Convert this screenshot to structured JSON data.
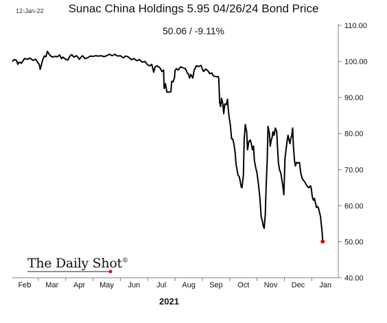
{
  "header": {
    "date": "12-Jan-22",
    "summary": "50.06  /  -9.11%"
  },
  "brand": {
    "name": "The Daily Shot",
    "mark": "®"
  },
  "colors": {
    "line": "#000000",
    "marker": "#e00000"
  },
  "chart_data": {
    "type": "line",
    "title": "Sunac China Holdings 5.95 04/26/24 Bond Price",
    "xlabel": "2021",
    "ylim": [
      40,
      110
    ],
    "yticks": [
      "40.00",
      "50.00",
      "60.00",
      "70.00",
      "80.00",
      "90.00",
      "100.00",
      "110.00"
    ],
    "month_ticks": [
      {
        "label": "Feb",
        "x": 1.5
      },
      {
        "label": "Mar",
        "x": 2.5
      },
      {
        "label": "Apr",
        "x": 3.5
      },
      {
        "label": "May",
        "x": 4.5
      },
      {
        "label": "Jun",
        "x": 5.5
      },
      {
        "label": "Jul",
        "x": 6.5
      },
      {
        "label": "Aug",
        "x": 7.5
      },
      {
        "label": "Sep",
        "x": 8.5
      },
      {
        "label": "Oct",
        "x": 9.5
      },
      {
        "label": "Nov",
        "x": 10.5
      },
      {
        "label": "Dec",
        "x": 11.5
      },
      {
        "label": "Jan",
        "x": 12.5
      }
    ],
    "xlim": [
      1.05,
      12.97
    ],
    "series": [
      {
        "values": [
          [
            1.05,
            100
          ],
          [
            1.12,
            100.5
          ],
          [
            1.2,
            100.3
          ],
          [
            1.25,
            99.2
          ],
          [
            1.3,
            99.8
          ],
          [
            1.38,
            99.5
          ],
          [
            1.45,
            100.3
          ],
          [
            1.5,
            100.8
          ],
          [
            1.6,
            100.6
          ],
          [
            1.7,
            100.9
          ],
          [
            1.8,
            100.3
          ],
          [
            1.9,
            100.6
          ],
          [
            1.97,
            99.8
          ],
          [
            2.03,
            99.2
          ],
          [
            2.07,
            97.8
          ],
          [
            2.1,
            98.6
          ],
          [
            2.15,
            100.2
          ],
          [
            2.22,
            101.5
          ],
          [
            2.28,
            101.3
          ],
          [
            2.33,
            102.8
          ],
          [
            2.38,
            102.2
          ],
          [
            2.42,
            101.8
          ],
          [
            2.5,
            101.2
          ],
          [
            2.6,
            101.4
          ],
          [
            2.7,
            101.3
          ],
          [
            2.78,
            101.8
          ],
          [
            2.85,
            100.8
          ],
          [
            2.9,
            101.2
          ],
          [
            3.0,
            100.6
          ],
          [
            3.08,
            100.4
          ],
          [
            3.15,
            101.4
          ],
          [
            3.22,
            101.9
          ],
          [
            3.3,
            101.2
          ],
          [
            3.4,
            101.6
          ],
          [
            3.5,
            100.6
          ],
          [
            3.55,
            101.1
          ],
          [
            3.62,
            101.6
          ],
          [
            3.7,
            100.8
          ],
          [
            3.8,
            101.0
          ],
          [
            3.9,
            101.5
          ],
          [
            4.0,
            101.4
          ],
          [
            4.1,
            101.6
          ],
          [
            4.2,
            101.5
          ],
          [
            4.3,
            101.6
          ],
          [
            4.4,
            101.3
          ],
          [
            4.5,
            101.6
          ],
          [
            4.6,
            102.0
          ],
          [
            4.7,
            101.6
          ],
          [
            4.8,
            102.0
          ],
          [
            4.9,
            101.5
          ],
          [
            5.0,
            101.6
          ],
          [
            5.1,
            101.0
          ],
          [
            5.2,
            101.5
          ],
          [
            5.3,
            101.2
          ],
          [
            5.4,
            100.5
          ],
          [
            5.5,
            100.8
          ],
          [
            5.6,
            100.2
          ],
          [
            5.7,
            100.5
          ],
          [
            5.8,
            99.8
          ],
          [
            5.9,
            100.0
          ],
          [
            6.0,
            99.0
          ],
          [
            6.08,
            98.8
          ],
          [
            6.15,
            99.2
          ],
          [
            6.22,
            97.0
          ],
          [
            6.27,
            98.5
          ],
          [
            6.35,
            98.8
          ],
          [
            6.45,
            98.2
          ],
          [
            6.52,
            97.2
          ],
          [
            6.58,
            97.6
          ],
          [
            6.6,
            92.5
          ],
          [
            6.65,
            93.8
          ],
          [
            6.7,
            91.5
          ],
          [
            6.8,
            91.5
          ],
          [
            6.85,
            91.6
          ],
          [
            6.88,
            94.5
          ],
          [
            6.93,
            94.3
          ],
          [
            6.98,
            95.5
          ],
          [
            7.0,
            97.5
          ],
          [
            7.05,
            98.0
          ],
          [
            7.12,
            97.6
          ],
          [
            7.2,
            98.5
          ],
          [
            7.3,
            98.2
          ],
          [
            7.38,
            98.0
          ],
          [
            7.45,
            96.8
          ],
          [
            7.5,
            96.4
          ],
          [
            7.53,
            95.4
          ],
          [
            7.58,
            96.4
          ],
          [
            7.65,
            95.4
          ],
          [
            7.7,
            97.6
          ],
          [
            7.78,
            98.8
          ],
          [
            7.88,
            98.6
          ],
          [
            7.95,
            98.9
          ],
          [
            8.0,
            97.8
          ],
          [
            8.05,
            97.2
          ],
          [
            8.12,
            97.9
          ],
          [
            8.2,
            97.4
          ],
          [
            8.27,
            96.6
          ],
          [
            8.35,
            96.8
          ],
          [
            8.4,
            96.0
          ],
          [
            8.48,
            95.8
          ],
          [
            8.58,
            95.8
          ],
          [
            8.6,
            95.0
          ],
          [
            8.63,
            88.5
          ],
          [
            8.67,
            87.5
          ],
          [
            8.7,
            89.8
          ],
          [
            8.75,
            88.2
          ],
          [
            8.78,
            85.5
          ],
          [
            8.82,
            88.2
          ],
          [
            8.87,
            88.0
          ],
          [
            8.92,
            89.5
          ],
          [
            8.95,
            86.5
          ],
          [
            8.98,
            84.5
          ],
          [
            9.02,
            82.5
          ],
          [
            9.07,
            78.5
          ],
          [
            9.11,
            78.5
          ],
          [
            9.15,
            77.2
          ],
          [
            9.2,
            74.5
          ],
          [
            9.23,
            71.5
          ],
          [
            9.3,
            68.5
          ],
          [
            9.35,
            68.0
          ],
          [
            9.38,
            67.0
          ],
          [
            9.42,
            65.2
          ],
          [
            9.45,
            65.0
          ],
          [
            9.5,
            68.5
          ],
          [
            9.53,
            78.5
          ],
          [
            9.57,
            82.5
          ],
          [
            9.62,
            80.5
          ],
          [
            9.65,
            75.5
          ],
          [
            9.7,
            77.8
          ],
          [
            9.75,
            78.2
          ],
          [
            9.79,
            77.2
          ],
          [
            9.83,
            75.5
          ],
          [
            9.87,
            76.5
          ],
          [
            9.9,
            72.5
          ],
          [
            9.95,
            70.5
          ],
          [
            10.0,
            69.0
          ],
          [
            10.05,
            66.0
          ],
          [
            10.1,
            62.5
          ],
          [
            10.15,
            57.0
          ],
          [
            10.2,
            55.5
          ],
          [
            10.23,
            54.2
          ],
          [
            10.26,
            53.7
          ],
          [
            10.3,
            57.5
          ],
          [
            10.33,
            65.0
          ],
          [
            10.37,
            72.5
          ],
          [
            10.4,
            82.0
          ],
          [
            10.45,
            80.0
          ],
          [
            10.48,
            76.5
          ],
          [
            10.52,
            78.2
          ],
          [
            10.55,
            79.0
          ],
          [
            10.58,
            80.5
          ],
          [
            10.62,
            79.5
          ],
          [
            10.67,
            81.5
          ],
          [
            10.72,
            80.5
          ],
          [
            10.75,
            76.0
          ],
          [
            10.78,
            72.0
          ],
          [
            10.82,
            70.0
          ],
          [
            10.87,
            69.0
          ],
          [
            10.92,
            66.5
          ],
          [
            10.95,
            65.0
          ],
          [
            10.98,
            63.0
          ],
          [
            11.02,
            73.0
          ],
          [
            11.05,
            75.0
          ],
          [
            11.1,
            78.0
          ],
          [
            11.13,
            79.5
          ],
          [
            11.17,
            78.2
          ],
          [
            11.2,
            77.2
          ],
          [
            11.23,
            78.5
          ],
          [
            11.27,
            79.5
          ],
          [
            11.3,
            81.5
          ],
          [
            11.33,
            76.5
          ],
          [
            11.37,
            72.5
          ],
          [
            11.4,
            71.0
          ],
          [
            11.45,
            72.0
          ],
          [
            11.5,
            71.8
          ],
          [
            11.55,
            72.0
          ],
          [
            11.6,
            69.0
          ],
          [
            11.65,
            67.5
          ],
          [
            11.7,
            67.0
          ],
          [
            11.75,
            66.5
          ],
          [
            11.8,
            65.8
          ],
          [
            11.85,
            65.2
          ],
          [
            11.9,
            65.0
          ],
          [
            11.95,
            65.5
          ],
          [
            11.98,
            65.0
          ],
          [
            12.02,
            62.5
          ],
          [
            12.06,
            61.5
          ],
          [
            12.1,
            62.0
          ],
          [
            12.13,
            61.0
          ],
          [
            12.17,
            59.5
          ],
          [
            12.2,
            59.8
          ],
          [
            12.24,
            59.5
          ],
          [
            12.27,
            58.5
          ],
          [
            12.32,
            57.0
          ],
          [
            12.36,
            54.0
          ],
          [
            12.38,
            52.5
          ],
          [
            12.4,
            50.06
          ]
        ]
      }
    ],
    "last_point": {
      "x": 12.4,
      "y": 50.06
    }
  }
}
